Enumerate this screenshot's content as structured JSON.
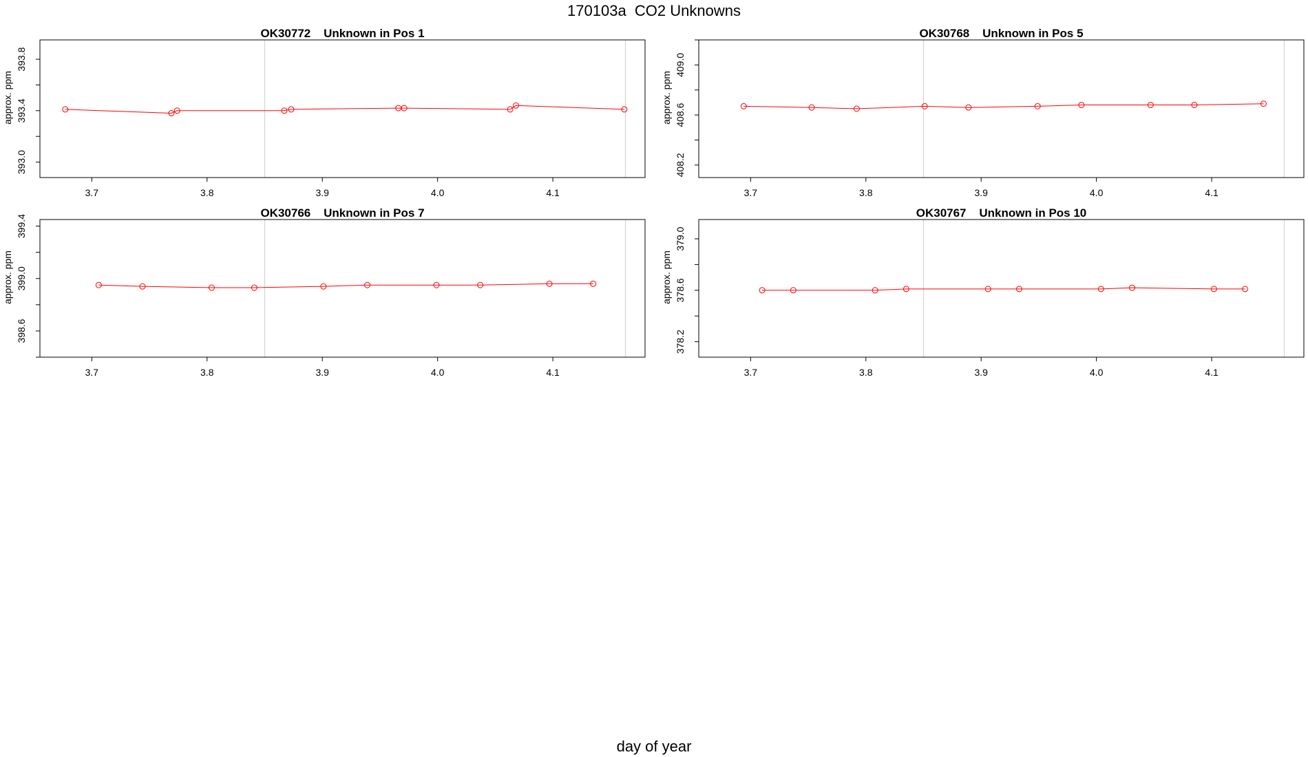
{
  "title": "170103a  CO2 Unknowns",
  "xlabel": "day of year",
  "colors": {
    "series": "#ff0000",
    "reference_line": "#d3d3d3",
    "frame": "#000000"
  },
  "chart_data": [
    {
      "type": "line",
      "title": "OK30772    Unknown in Pos 1",
      "ylabel": "approx. ppm",
      "xlim": [
        3.655,
        4.18
      ],
      "ylim": [
        392.88,
        393.95
      ],
      "xticks": [
        "3.7",
        "3.8",
        "3.9",
        "4.0",
        "4.1"
      ],
      "yticks": [
        "393.0",
        "393.4",
        "393.8"
      ],
      "ref_lines_x": [
        3.85,
        4.163
      ],
      "series": [
        {
          "markers": "open-circle",
          "x": [
            3.677,
            3.769,
            3.774,
            3.867,
            3.873,
            3.966,
            3.971,
            4.063,
            4.068,
            4.162
          ],
          "y": [
            393.41,
            393.38,
            393.4,
            393.4,
            393.41,
            393.42,
            393.42,
            393.41,
            393.44,
            393.41
          ]
        }
      ]
    },
    {
      "type": "line",
      "title": "OK30768    Unknown in Pos 5",
      "ylabel": "approx. ppm",
      "xlim": [
        3.655,
        4.18
      ],
      "ylim": [
        408.1,
        409.2
      ],
      "xticks": [
        "3.7",
        "3.8",
        "3.9",
        "4.0",
        "4.1"
      ],
      "yticks": [
        "408.2",
        "408.6",
        "409.0"
      ],
      "ref_lines_x": [
        3.85,
        4.163
      ],
      "series": [
        {
          "markers": "open-circle",
          "x": [
            3.694,
            3.753,
            3.792,
            3.851,
            3.889,
            3.949,
            3.987,
            4.047,
            4.085,
            4.145
          ],
          "y": [
            408.67,
            408.66,
            408.65,
            408.67,
            408.66,
            408.67,
            408.68,
            408.68,
            408.68,
            408.69
          ]
        }
      ]
    },
    {
      "type": "line",
      "title": "OK30766    Unknown in Pos 7",
      "ylabel": "approx. ppm",
      "xlim": [
        3.655,
        4.18
      ],
      "ylim": [
        398.4,
        399.45
      ],
      "xticks": [
        "3.7",
        "3.8",
        "3.9",
        "4.0",
        "4.1"
      ],
      "yticks": [
        "398.6",
        "399.0",
        "399.4"
      ],
      "ref_lines_x": [
        3.85,
        4.163
      ],
      "series": [
        {
          "markers": "open-circle",
          "x": [
            3.706,
            3.744,
            3.804,
            3.841,
            3.901,
            3.939,
            3.999,
            4.037,
            4.097,
            4.135
          ],
          "y": [
            398.95,
            398.94,
            398.93,
            398.93,
            398.94,
            398.95,
            398.95,
            398.95,
            398.96,
            398.96
          ]
        }
      ]
    },
    {
      "type": "line",
      "title": "OK30767    Unknown in Pos 10",
      "ylabel": "approx. ppm",
      "xlim": [
        3.655,
        4.18
      ],
      "ylim": [
        378.08,
        379.15
      ],
      "xticks": [
        "3.7",
        "3.8",
        "3.9",
        "4.0",
        "4.1"
      ],
      "yticks": [
        "378.2",
        "378.6",
        "379.0"
      ],
      "ref_lines_x": [
        3.85,
        4.163
      ],
      "series": [
        {
          "markers": "open-circle",
          "x": [
            3.71,
            3.737,
            3.808,
            3.835,
            3.906,
            3.933,
            4.004,
            4.031,
            4.102,
            4.129
          ],
          "y": [
            378.6,
            378.6,
            378.6,
            378.61,
            378.61,
            378.61,
            378.61,
            378.62,
            378.61,
            378.61
          ]
        }
      ]
    }
  ]
}
